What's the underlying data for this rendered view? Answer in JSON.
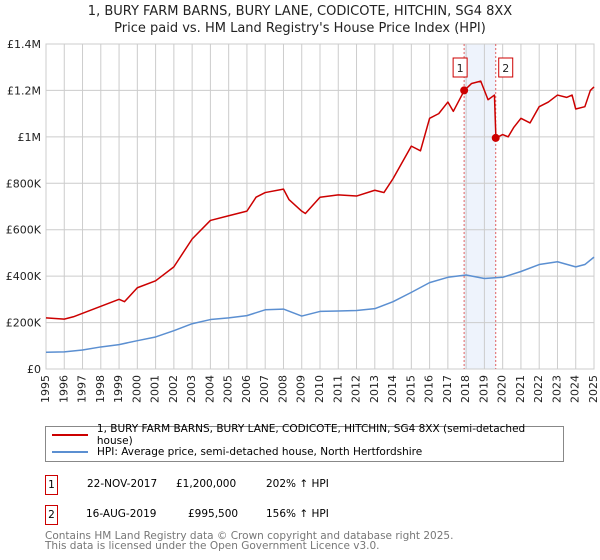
{
  "chart_data": {
    "type": "line",
    "title": "1, BURY FARM BARNS, BURY LANE, CODICOTE, HITCHIN, SG4 8XX",
    "subtitle": "Price paid vs. HM Land Registry's House Price Index (HPI)",
    "xlim": [
      1995,
      2025
    ],
    "ylim": [
      0,
      1400000
    ],
    "x_ticks": [
      "1995",
      "1996",
      "1997",
      "1998",
      "1999",
      "2000",
      "2001",
      "2002",
      "2003",
      "2004",
      "2005",
      "2006",
      "2007",
      "2008",
      "2009",
      "2010",
      "2011",
      "2012",
      "2013",
      "2014",
      "2015",
      "2016",
      "2017",
      "2018",
      "2019",
      "2020",
      "2021",
      "2022",
      "2023",
      "2024",
      "2025"
    ],
    "y_ticks": [
      {
        "v": 0,
        "label": "£0"
      },
      {
        "v": 200000,
        "label": "£200K"
      },
      {
        "v": 400000,
        "label": "£400K"
      },
      {
        "v": 600000,
        "label": "£600K"
      },
      {
        "v": 800000,
        "label": "£800K"
      },
      {
        "v": 1000000,
        "label": "£1M"
      },
      {
        "v": 1200000,
        "label": "£1.2M"
      },
      {
        "v": 1400000,
        "label": "£1.4M"
      }
    ],
    "grid": true,
    "series": [
      {
        "name": "1, BURY FARM BARNS, BURY LANE, CODICOTE, HITCHIN, SG4 8XX (semi-detached house)",
        "color": "#cc0000",
        "x": [
          1995,
          1996,
          1996.5,
          1997,
          1998,
          1999,
          1999.3,
          2000,
          2001,
          2002,
          2003,
          2004,
          2005,
          2006,
          2006.5,
          2007,
          2008,
          2008.3,
          2009,
          2009.2,
          2010,
          2011,
          2012,
          2013,
          2013.5,
          2014,
          2015,
          2015.5,
          2016,
          2016.5,
          2017,
          2017.3,
          2017.9,
          2018.3,
          2018.8,
          2019.2,
          2019.55,
          2019.63,
          2020,
          2020.3,
          2020.6,
          2021,
          2021.5,
          2022,
          2022.5,
          2023,
          2023.5,
          2023.8,
          2024,
          2024.5,
          2024.8,
          2025
        ],
        "y": [
          220000,
          215000,
          225000,
          240000,
          270000,
          300000,
          290000,
          350000,
          380000,
          440000,
          560000,
          640000,
          660000,
          680000,
          740000,
          760000,
          775000,
          730000,
          680000,
          670000,
          740000,
          750000,
          745000,
          770000,
          760000,
          820000,
          960000,
          940000,
          1080000,
          1100000,
          1150000,
          1110000,
          1200000,
          1230000,
          1240000,
          1160000,
          1180000,
          995500,
          1010000,
          1000000,
          1040000,
          1080000,
          1060000,
          1130000,
          1150000,
          1180000,
          1170000,
          1180000,
          1120000,
          1130000,
          1200000,
          1215000
        ]
      },
      {
        "name": "HPI: Average price, semi-detached house, North Hertfordshire",
        "color": "#5b8fd1",
        "x": [
          1995,
          1996,
          1997,
          1998,
          1999,
          2000,
          2001,
          2002,
          2003,
          2004,
          2005,
          2006,
          2007,
          2008,
          2009,
          2010,
          2011,
          2012,
          2013,
          2014,
          2015,
          2016,
          2017,
          2018,
          2019,
          2020,
          2021,
          2022,
          2023,
          2024,
          2024.5,
          2025
        ],
        "y": [
          72000,
          74000,
          82000,
          95000,
          105000,
          122000,
          138000,
          165000,
          195000,
          213000,
          220000,
          230000,
          255000,
          258000,
          228000,
          248000,
          250000,
          252000,
          260000,
          290000,
          330000,
          372000,
          395000,
          405000,
          390000,
          395000,
          420000,
          450000,
          462000,
          440000,
          450000,
          482000
        ]
      }
    ],
    "sales": [
      {
        "label": "1",
        "x": 2017.89,
        "y": 1200000
      },
      {
        "label": "2",
        "x": 2019.62,
        "y": 995500
      }
    ]
  },
  "legend": {
    "red": "1, BURY FARM BARNS, BURY LANE, CODICOTE, HITCHIN, SG4 8XX (semi-detached house)",
    "blue": "HPI: Average price, semi-detached house, North Hertfordshire"
  },
  "transactions": [
    {
      "num": "1",
      "date": "22-NOV-2017",
      "price": "£1,200,000",
      "hpi": "202% ↑ HPI"
    },
    {
      "num": "2",
      "date": "16-AUG-2019",
      "price": "£995,500",
      "hpi": "156% ↑ HPI"
    }
  ],
  "footer": {
    "line1": "Contains HM Land Registry data © Crown copyright and database right 2025.",
    "line2": "This data is licensed under the Open Government Licence v3.0."
  }
}
